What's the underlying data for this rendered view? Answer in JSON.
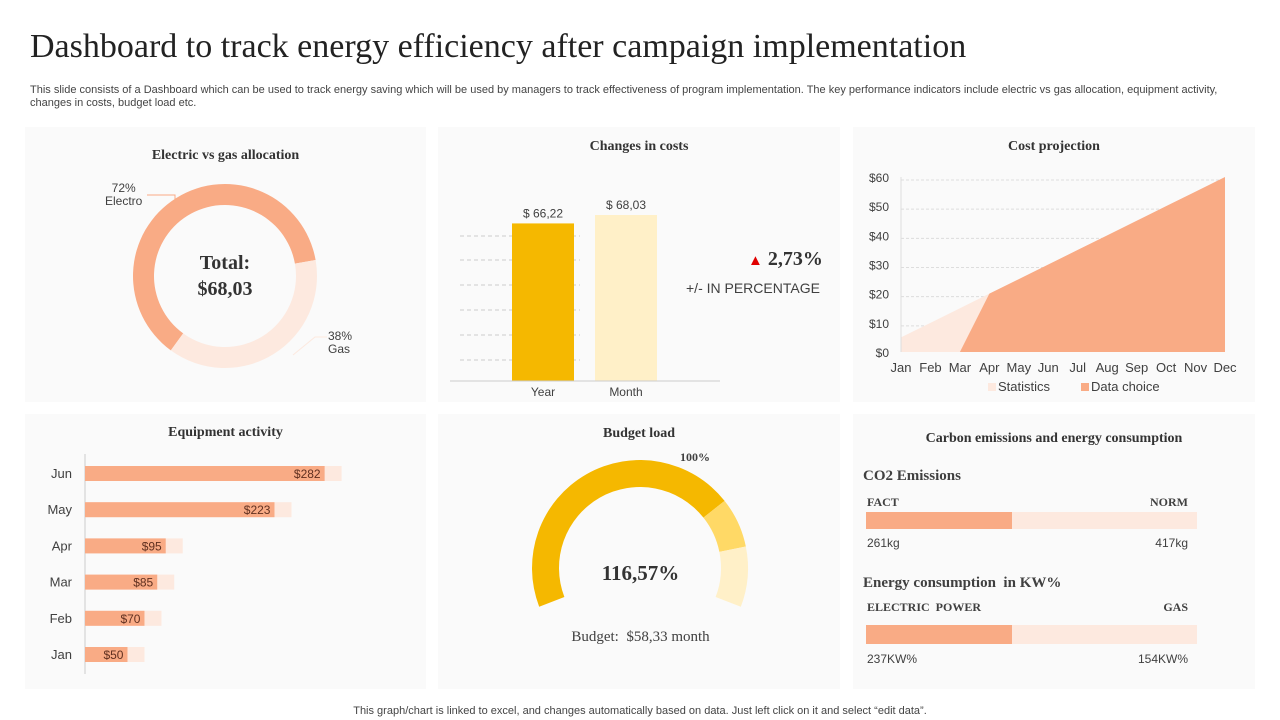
{
  "title": "Dashboard to track energy efficiency after campaign implementation",
  "description": "This slide consists of a Dashboard which can be used to track energy saving which will be used by managers to track effectiveness of program implementation. The key performance indicators include electric vs gas allocation, equipment activity, changes in costs, budget load etc.",
  "footer": "This graph/chart is linked to excel, and changes automatically based on data. Just left click on it and select “edit data”.",
  "colors": {
    "orange": "#F9AB85",
    "light_orange": "#FDE9DF",
    "gold": "#F5B800",
    "light_gold": "#FFD966",
    "pale_gold": "#FFF0C8",
    "red": "#E00000"
  },
  "chart_data": [
    {
      "type": "pie",
      "title": "Electric vs gas allocation",
      "center_label": "Total:",
      "center_value": "$68,03",
      "slices": [
        {
          "name": "Electro",
          "value": 72,
          "label": "72%"
        },
        {
          "name": "Gas",
          "value": 38,
          "label": "38%"
        }
      ]
    },
    {
      "type": "bar",
      "title": "Changes in costs",
      "categories": [
        "Year",
        "Month"
      ],
      "values": [
        66.22,
        68.03
      ],
      "labels": [
        "$ 66,22",
        "$ 68,03"
      ],
      "change": "2,73%",
      "change_label": "+/- IN PERCENTAGE",
      "change_icon": "triangle-up-icon"
    },
    {
      "type": "area",
      "title": "Cost projection",
      "categories": [
        "Jan",
        "Feb",
        "Mar",
        "Apr",
        "May",
        "Jun",
        "Jul",
        "Aug",
        "Sep",
        "Oct",
        "Nov",
        "Dec"
      ],
      "ylim": [
        0,
        60
      ],
      "yticks": [
        "$0",
        "$10",
        "$20",
        "$30",
        "$40",
        "$50",
        "$60"
      ],
      "grid": true,
      "legend": "bottom",
      "series": [
        {
          "name": "Statistics",
          "values": [
            5,
            10,
            15,
            20,
            null,
            null,
            null,
            null,
            null,
            null,
            null,
            null
          ]
        },
        {
          "name": "Data choice",
          "values": [
            0,
            0,
            0,
            20,
            25,
            30,
            35,
            40,
            45,
            50,
            55,
            60
          ]
        }
      ]
    },
    {
      "type": "bar",
      "orientation": "horizontal",
      "title": "Equipment activity",
      "categories": [
        "Jun",
        "May",
        "Apr",
        "Mar",
        "Feb",
        "Jan"
      ],
      "values": [
        282,
        223,
        95,
        85,
        70,
        50
      ],
      "labels": [
        "$282",
        "$223",
        "$95",
        "$85",
        "$70",
        "$50"
      ],
      "xlim": [
        0,
        340
      ]
    },
    {
      "type": "pie",
      "subtype": "gauge",
      "title": "Budget load",
      "value_label": "116,57%",
      "marker_label": "100%",
      "budget_label": "Budget:  $58,33 month",
      "segments": [
        100,
        16.57,
        20
      ]
    }
  ],
  "carbon": {
    "title": "Carbon emissions and energy consumption",
    "co2": {
      "heading": "CO2 Emissions",
      "left_label": "FACT",
      "right_label": "NORM",
      "left_value": "261kg",
      "right_value": "417kg",
      "fill": 0.44
    },
    "energy": {
      "heading": "Energy consumption  in KW%",
      "left_label": "ELECTRIC  POWER",
      "right_label": "GAS",
      "left_value": "237KW%",
      "right_value": "154KW%",
      "fill": 0.44
    }
  }
}
